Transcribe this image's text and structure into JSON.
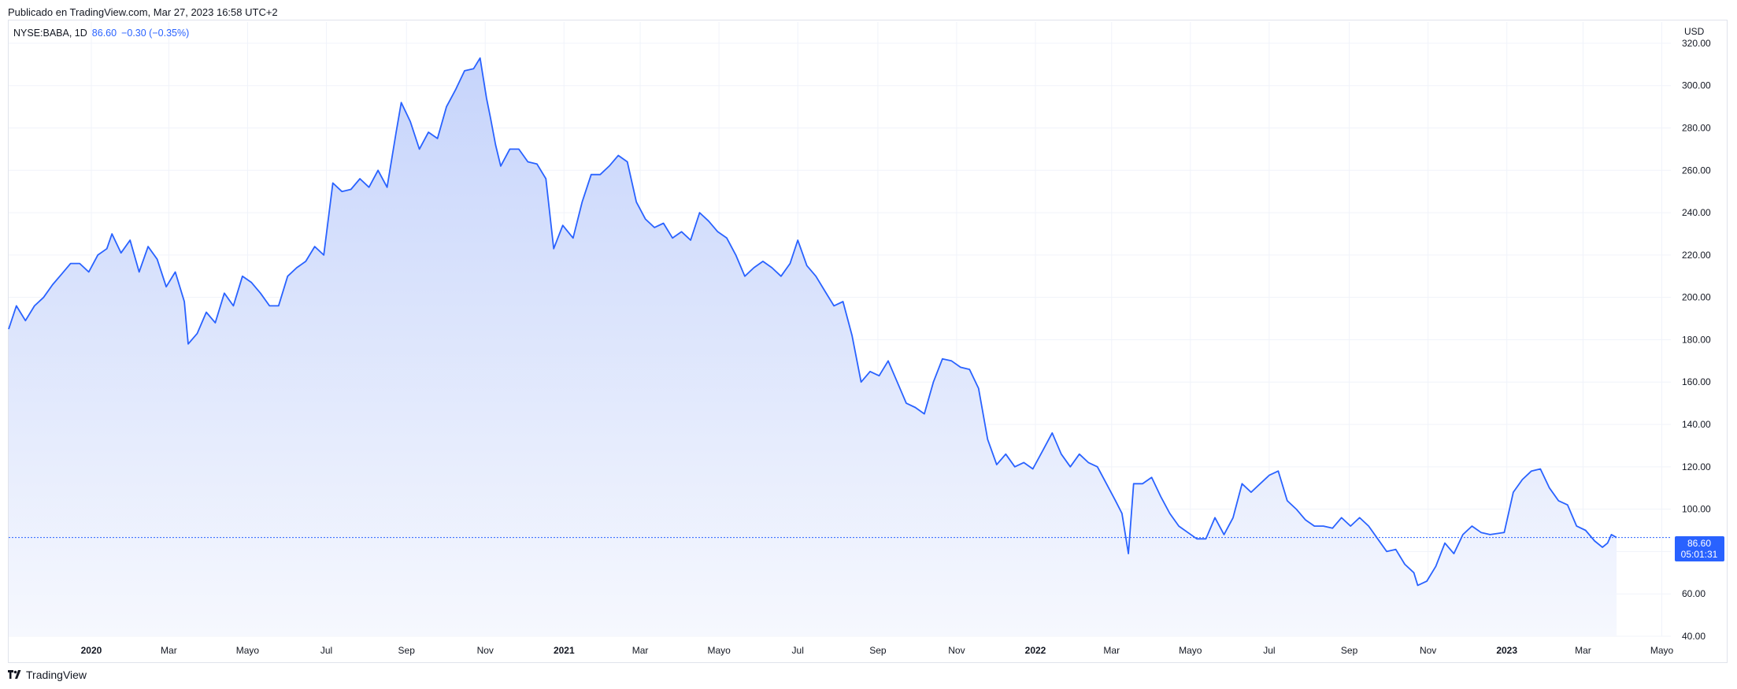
{
  "header": {
    "published": "Publicado en TradingView.com, Mar 27, 2023 16:58 UTC+2"
  },
  "legend": {
    "symbol": "NYSE:BABA, 1D",
    "value": "86.60",
    "change": "−0.30 (−0.35%)"
  },
  "footer": {
    "brand": "TradingView",
    "logo_icon": "tradingview-logo-icon"
  },
  "colors": {
    "line": "#2962ff",
    "fill_top": "#c6d4fb",
    "fill_bottom": "#f6f8fe",
    "grid": "#f0f3fa"
  },
  "chart_data": {
    "type": "area",
    "currency_label": "USD",
    "last_price_label": {
      "price": "86.60",
      "countdown": "05:01:31"
    },
    "ylim": [
      40,
      330
    ],
    "y_ticks": [
      40,
      60,
      80,
      100,
      120,
      140,
      160,
      180,
      200,
      220,
      240,
      260,
      280,
      300,
      320
    ],
    "y_tick_labels": [
      "40.00",
      "60.00",
      "80.00",
      "100.00",
      "120.00",
      "140.00",
      "160.00",
      "180.00",
      "200.00",
      "220.00",
      "240.00",
      "260.00",
      "280.00",
      "300.00",
      "320.00"
    ],
    "x_domain": [
      "2019-10-29",
      "2023-05-08"
    ],
    "x_ticks": [
      {
        "date": "2020-01-01",
        "label": "2020",
        "year": true
      },
      {
        "date": "2020-03-01",
        "label": "Mar",
        "year": false
      },
      {
        "date": "2020-05-01",
        "label": "Mayo",
        "year": false
      },
      {
        "date": "2020-07-01",
        "label": "Jul",
        "year": false
      },
      {
        "date": "2020-09-01",
        "label": "Sep",
        "year": false
      },
      {
        "date": "2020-11-01",
        "label": "Nov",
        "year": false
      },
      {
        "date": "2021-01-01",
        "label": "2021",
        "year": true
      },
      {
        "date": "2021-03-01",
        "label": "Mar",
        "year": false
      },
      {
        "date": "2021-05-01",
        "label": "Mayo",
        "year": false
      },
      {
        "date": "2021-07-01",
        "label": "Jul",
        "year": false
      },
      {
        "date": "2021-09-01",
        "label": "Sep",
        "year": false
      },
      {
        "date": "2021-11-01",
        "label": "Nov",
        "year": false
      },
      {
        "date": "2022-01-01",
        "label": "2022",
        "year": true
      },
      {
        "date": "2022-03-01",
        "label": "Mar",
        "year": false
      },
      {
        "date": "2022-05-01",
        "label": "Mayo",
        "year": false
      },
      {
        "date": "2022-07-01",
        "label": "Jul",
        "year": false
      },
      {
        "date": "2022-09-01",
        "label": "Sep",
        "year": false
      },
      {
        "date": "2022-11-01",
        "label": "Nov",
        "year": false
      },
      {
        "date": "2023-01-01",
        "label": "2023",
        "year": true
      },
      {
        "date": "2023-03-01",
        "label": "Mar",
        "year": false
      },
      {
        "date": "2023-05-01",
        "label": "Mayo",
        "year": false
      }
    ],
    "series": [
      {
        "symbol": "NYSE:BABA",
        "points": [
          [
            "2019-10-29",
            185
          ],
          [
            "2019-11-04",
            196
          ],
          [
            "2019-11-11",
            189
          ],
          [
            "2019-11-18",
            196
          ],
          [
            "2019-11-25",
            200
          ],
          [
            "2019-12-02",
            206
          ],
          [
            "2019-12-09",
            211
          ],
          [
            "2019-12-16",
            216
          ],
          [
            "2019-12-23",
            216
          ],
          [
            "2019-12-30",
            212
          ],
          [
            "2020-01-06",
            220
          ],
          [
            "2020-01-13",
            223
          ],
          [
            "2020-01-17",
            230
          ],
          [
            "2020-01-24",
            221
          ],
          [
            "2020-01-31",
            227
          ],
          [
            "2020-02-07",
            212
          ],
          [
            "2020-02-14",
            224
          ],
          [
            "2020-02-21",
            218
          ],
          [
            "2020-02-28",
            205
          ],
          [
            "2020-03-06",
            212
          ],
          [
            "2020-03-13",
            198
          ],
          [
            "2020-03-16",
            178
          ],
          [
            "2020-03-23",
            183
          ],
          [
            "2020-03-30",
            193
          ],
          [
            "2020-04-06",
            188
          ],
          [
            "2020-04-13",
            202
          ],
          [
            "2020-04-20",
            196
          ],
          [
            "2020-04-27",
            210
          ],
          [
            "2020-05-04",
            207
          ],
          [
            "2020-05-11",
            202
          ],
          [
            "2020-05-18",
            196
          ],
          [
            "2020-05-25",
            196
          ],
          [
            "2020-06-01",
            210
          ],
          [
            "2020-06-08",
            214
          ],
          [
            "2020-06-15",
            217
          ],
          [
            "2020-06-22",
            224
          ],
          [
            "2020-06-29",
            220
          ],
          [
            "2020-07-06",
            254
          ],
          [
            "2020-07-13",
            250
          ],
          [
            "2020-07-20",
            251
          ],
          [
            "2020-07-27",
            256
          ],
          [
            "2020-08-03",
            252
          ],
          [
            "2020-08-10",
            260
          ],
          [
            "2020-08-17",
            252
          ],
          [
            "2020-08-24",
            278
          ],
          [
            "2020-08-28",
            292
          ],
          [
            "2020-09-04",
            283
          ],
          [
            "2020-09-11",
            270
          ],
          [
            "2020-09-18",
            278
          ],
          [
            "2020-09-25",
            275
          ],
          [
            "2020-10-02",
            290
          ],
          [
            "2020-10-09",
            298
          ],
          [
            "2020-10-16",
            307
          ],
          [
            "2020-10-23",
            308
          ],
          [
            "2020-10-28",
            313
          ],
          [
            "2020-11-02",
            294
          ],
          [
            "2020-11-05",
            285
          ],
          [
            "2020-11-09",
            272
          ],
          [
            "2020-11-13",
            262
          ],
          [
            "2020-11-20",
            270
          ],
          [
            "2020-11-27",
            270
          ],
          [
            "2020-12-04",
            264
          ],
          [
            "2020-12-11",
            263
          ],
          [
            "2020-12-18",
            256
          ],
          [
            "2020-12-24",
            223
          ],
          [
            "2020-12-31",
            234
          ],
          [
            "2021-01-08",
            228
          ],
          [
            "2021-01-15",
            245
          ],
          [
            "2021-01-22",
            258
          ],
          [
            "2021-01-29",
            258
          ],
          [
            "2021-02-05",
            262
          ],
          [
            "2021-02-12",
            267
          ],
          [
            "2021-02-19",
            264
          ],
          [
            "2021-02-26",
            245
          ],
          [
            "2021-03-05",
            237
          ],
          [
            "2021-03-12",
            233
          ],
          [
            "2021-03-19",
            235
          ],
          [
            "2021-03-26",
            228
          ],
          [
            "2021-04-02",
            231
          ],
          [
            "2021-04-09",
            227
          ],
          [
            "2021-04-16",
            240
          ],
          [
            "2021-04-23",
            236
          ],
          [
            "2021-04-30",
            231
          ],
          [
            "2021-05-07",
            228
          ],
          [
            "2021-05-14",
            220
          ],
          [
            "2021-05-21",
            210
          ],
          [
            "2021-05-28",
            214
          ],
          [
            "2021-06-04",
            217
          ],
          [
            "2021-06-11",
            214
          ],
          [
            "2021-06-18",
            210
          ],
          [
            "2021-06-25",
            216
          ],
          [
            "2021-07-01",
            227
          ],
          [
            "2021-07-08",
            215
          ],
          [
            "2021-07-15",
            210
          ],
          [
            "2021-07-22",
            203
          ],
          [
            "2021-07-29",
            196
          ],
          [
            "2021-08-05",
            198
          ],
          [
            "2021-08-12",
            182
          ],
          [
            "2021-08-19",
            160
          ],
          [
            "2021-08-26",
            165
          ],
          [
            "2021-09-02",
            163
          ],
          [
            "2021-09-09",
            170
          ],
          [
            "2021-09-16",
            160
          ],
          [
            "2021-09-23",
            150
          ],
          [
            "2021-09-30",
            148
          ],
          [
            "2021-10-07",
            145
          ],
          [
            "2021-10-14",
            160
          ],
          [
            "2021-10-21",
            171
          ],
          [
            "2021-10-28",
            170
          ],
          [
            "2021-11-04",
            167
          ],
          [
            "2021-11-11",
            166
          ],
          [
            "2021-11-18",
            157
          ],
          [
            "2021-11-25",
            133
          ],
          [
            "2021-12-02",
            121
          ],
          [
            "2021-12-09",
            126
          ],
          [
            "2021-12-16",
            120
          ],
          [
            "2021-12-23",
            122
          ],
          [
            "2021-12-30",
            119
          ],
          [
            "2022-01-07",
            128
          ],
          [
            "2022-01-14",
            136
          ],
          [
            "2022-01-21",
            126
          ],
          [
            "2022-01-28",
            120
          ],
          [
            "2022-02-04",
            126
          ],
          [
            "2022-02-11",
            122
          ],
          [
            "2022-02-18",
            120
          ],
          [
            "2022-02-25",
            112
          ],
          [
            "2022-03-04",
            104
          ],
          [
            "2022-03-09",
            98
          ],
          [
            "2022-03-14",
            79
          ],
          [
            "2022-03-18",
            112
          ],
          [
            "2022-03-25",
            112
          ],
          [
            "2022-04-01",
            115
          ],
          [
            "2022-04-08",
            106
          ],
          [
            "2022-04-15",
            98
          ],
          [
            "2022-04-22",
            92
          ],
          [
            "2022-04-29",
            89
          ],
          [
            "2022-05-06",
            86
          ],
          [
            "2022-05-13",
            86
          ],
          [
            "2022-05-20",
            96
          ],
          [
            "2022-05-27",
            88
          ],
          [
            "2022-06-03",
            96
          ],
          [
            "2022-06-10",
            112
          ],
          [
            "2022-06-17",
            108
          ],
          [
            "2022-06-24",
            112
          ],
          [
            "2022-07-01",
            116
          ],
          [
            "2022-07-08",
            118
          ],
          [
            "2022-07-15",
            104
          ],
          [
            "2022-07-22",
            100
          ],
          [
            "2022-07-29",
            95
          ],
          [
            "2022-08-05",
            92
          ],
          [
            "2022-08-12",
            92
          ],
          [
            "2022-08-19",
            91
          ],
          [
            "2022-08-26",
            96
          ],
          [
            "2022-09-02",
            92
          ],
          [
            "2022-09-09",
            96
          ],
          [
            "2022-09-16",
            92
          ],
          [
            "2022-09-23",
            86
          ],
          [
            "2022-09-30",
            80
          ],
          [
            "2022-10-07",
            81
          ],
          [
            "2022-10-14",
            74
          ],
          [
            "2022-10-21",
            70
          ],
          [
            "2022-10-24",
            64
          ],
          [
            "2022-10-31",
            66
          ],
          [
            "2022-11-07",
            73
          ],
          [
            "2022-11-14",
            84
          ],
          [
            "2022-11-21",
            79
          ],
          [
            "2022-11-28",
            88
          ],
          [
            "2022-12-05",
            92
          ],
          [
            "2022-12-12",
            89
          ],
          [
            "2022-12-19",
            88
          ],
          [
            "2022-12-30",
            89
          ],
          [
            "2023-01-06",
            108
          ],
          [
            "2023-01-13",
            114
          ],
          [
            "2023-01-20",
            118
          ],
          [
            "2023-01-27",
            119
          ],
          [
            "2023-02-03",
            110
          ],
          [
            "2023-02-10",
            104
          ],
          [
            "2023-02-17",
            102
          ],
          [
            "2023-02-24",
            92
          ],
          [
            "2023-03-03",
            90
          ],
          [
            "2023-03-10",
            85
          ],
          [
            "2023-03-16",
            82
          ],
          [
            "2023-03-20",
            84
          ],
          [
            "2023-03-23",
            88
          ],
          [
            "2023-03-27",
            86.6
          ]
        ]
      }
    ]
  }
}
